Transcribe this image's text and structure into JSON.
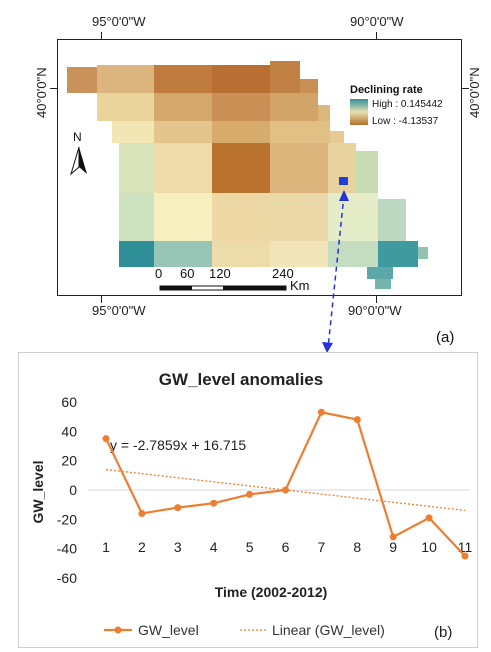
{
  "map": {
    "coords": {
      "top_left": "95°0'0\"W",
      "top_right": "90°0'0\"W",
      "bottom_left": "95°0'0\"W",
      "bottom_right": "90°0'0\"W",
      "left_top": "40°0'0\"N",
      "right_top": "40°0'0\"N"
    },
    "north_label": "N",
    "legend": {
      "title": "Declining rate",
      "high_label": "High : 0.145442",
      "low_label": "Low : -4.13537",
      "high_color": "#2f8f99",
      "low_color": "#b8702a"
    },
    "scale": {
      "ticks": [
        "0",
        "60",
        "120",
        "240"
      ],
      "unit": "Km"
    },
    "panel_label": "(a)",
    "highlight_color": "#1f3fd8"
  },
  "chart_data": {
    "type": "line",
    "title": "GW_level anomalies",
    "xlabel": "Time (2002-2012)",
    "ylabel": "GW_level",
    "x": [
      1,
      2,
      3,
      4,
      5,
      6,
      7,
      8,
      9,
      10,
      11
    ],
    "x_tick_labels": [
      "1",
      "2",
      "3",
      "4",
      "5",
      "6",
      "7",
      "8",
      "9",
      "10",
      "11"
    ],
    "ylim": [
      -60,
      60
    ],
    "y_ticks": [
      "60",
      "40",
      "20",
      "0",
      "-20",
      "-40",
      "-60"
    ],
    "series": [
      {
        "name": "GW_level",
        "values": [
          35,
          -16,
          -12,
          -9,
          -3,
          0,
          53,
          48,
          -32,
          -19,
          -45
        ],
        "color": "#ed7d31"
      }
    ],
    "trendline": {
      "name": "Linear (GW_level)",
      "slope": -2.7859,
      "intercept": 16.715,
      "color": "#ed7d31"
    },
    "equation": "y = -2.7859x + 16.715",
    "legend_placement": "bottom",
    "panel_label": "(b)"
  }
}
